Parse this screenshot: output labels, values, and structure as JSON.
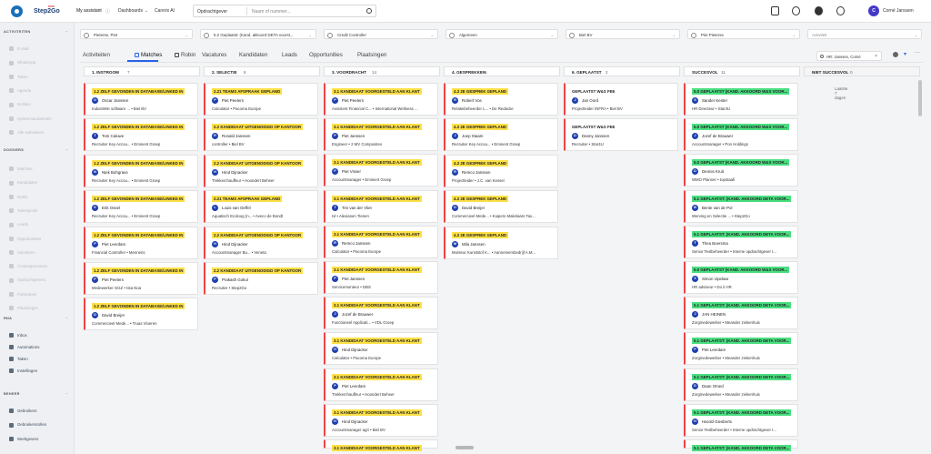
{
  "topbar": {
    "brand": "Step2Go",
    "brand_badge": "new",
    "nav": [
      "My assistant",
      "Dashboards",
      "Carerix AI"
    ],
    "search_type": "Opdrachtgever",
    "search_placeholder": "Naam of nummer...",
    "user_initial": "C",
    "user_name": "Corné Janssen"
  },
  "sidebar": {
    "sections": [
      {
        "title": "ACTIVITEITEN",
        "items": [
          "E-mail",
          "WhatsApp",
          "Taken",
          "Agenda",
          "Notities",
          "Systeemactiviteiten",
          "Alle activiteiten"
        ]
      },
      {
        "title": "DOSSIERS",
        "items": [
          "Matches",
          "Kandidaten",
          "Robin",
          "Talentpools",
          "Leads",
          "Opportunities",
          "Vacatures",
          "Contactpersonen",
          "Opdrachtgevers",
          "Publicaties",
          "Plaatsingen"
        ]
      },
      {
        "title": "RNA",
        "items": [
          "Inbox",
          "Automations",
          "Taken",
          "Instellingen"
        ]
      },
      {
        "title": "BEHEER",
        "items": [
          "Gebruikers",
          "Gebruikersrollen",
          "Werkgevers"
        ]
      }
    ]
  },
  "filters": [
    "Pieterse, Piet",
    "5.2 Geplaatst: (Kand. akkoord DETA voorst...",
    "Credit Controller",
    "Algemeen",
    "Biel BV",
    "Piet Pieterse",
    "Activiteit"
  ],
  "tabs": [
    "Activiteiten",
    "Matches",
    "Robin",
    "Vacatures",
    "Kandidaten",
    "Leads",
    "Opportunities",
    "Plaatsingen"
  ],
  "chip": "HR: Janssen, Corné",
  "columns": [
    {
      "title": "1. INSTROOM",
      "count": "7",
      "cards": [
        {
          "badge": "1.2 ZELF GEVONDEN IN DATABASE/LINKED IN",
          "initial": "O",
          "name": "Oscar Janssen",
          "meta": "Industriële software ... • Biel BV"
        },
        {
          "badge": "1.2 ZELF GEVONDEN IN DATABASE/LINKED IN",
          "initial": "T",
          "name": "Tom Caluwe",
          "meta": "Recruiter Key Accou... • Eminent Groep"
        },
        {
          "badge": "1.2 ZELF GEVONDEN IN DATABASE/LINKED IN",
          "initial": "N",
          "name": "Niek Bohgrave",
          "meta": "Recruiter Key Accou... • Eminent Groep"
        },
        {
          "badge": "1.2 ZELF GEVONDEN IN DATABASE/LINKED IN",
          "initial": "E",
          "name": "Erik Ossel",
          "meta": "Recruiter Key Accou... • Eminent Groep"
        },
        {
          "badge": "1.2 ZELF GEVONDEN IN DATABASE/LINKED IN",
          "initial": "P",
          "name": "Piet Leerdam",
          "meta": "Financial Controller • Mennens"
        },
        {
          "badge": "1.2 ZELF GEVONDEN IN DATABASE/LINKED IN",
          "initial": "P",
          "name": "Piet Peeters",
          "meta": "Medewerker GGZ • Ista Noa"
        },
        {
          "badge": "1.2 ZELF GEVONDEN IN DATABASE/LINKED IN",
          "initial": "D",
          "name": "David Breijer",
          "meta": "Commercieel Mede... • Truas Vloeren"
        }
      ]
    },
    {
      "title": "2. SELECTIE",
      "count": "6",
      "cards": [
        {
          "badge": "2.21 TEAMS AFSPRAAK GEPLAND",
          "initial": "P",
          "name": "Piet Peeters",
          "meta": "Calculator • Pacoma Europe"
        },
        {
          "badge": "2.2 KANDIDAAT UITGENODIGD OP KANTOOR",
          "initial": "R",
          "name": "Ronald Janssen",
          "meta": "controller • Biel BV"
        },
        {
          "badge": "2.2 KANDIDAAT UITGENODIGD OP KANTOOR",
          "initial": "H",
          "name": "Hind Dijnacker",
          "meta": "Trekkerchauffeur • Hoondert Beheer"
        },
        {
          "badge": "2.21 TEAMS AFSPRAAK GEPLAND",
          "initial": "L",
          "name": "Louis van Oeffel",
          "meta": "Aquatisch Ecoloog (n... • Aveco de Bondt"
        },
        {
          "badge": "2.2 KANDIDAAT UITGENODIGD OP KANTOOR",
          "initial": "H",
          "name": "Hind Dijnacker",
          "meta": "Accountmanager Bu... • Veneta"
        },
        {
          "badge": "2.2 KANDIDAAT UITGENODIGD OP KANTOOR",
          "initial": "P",
          "name": "Prakash Gokul",
          "meta": "Recruiter • Step2Go"
        }
      ]
    },
    {
      "title": "3. VOORDRACHT",
      "count": "14",
      "cards": [
        {
          "badge": "3.1 KANDIDAAT VOORGESTELD AAN KLANT",
          "initial": "P",
          "name": "Piet Peeters",
          "meta": "Assistent Financial C... • International Wellness ..."
        },
        {
          "badge": "3.1 KANDIDAAT VOORGESTELD AAN KLANT",
          "initial": "P",
          "name": "Piet Janssen",
          "meta": "Engineer • 2 MV Composites"
        },
        {
          "badge": "3.1 KANDIDAAT VOORGESTELD AAN KLANT",
          "initial": "P",
          "name": "Piet Visser",
          "meta": "Accountmanager • Eminent Groep"
        },
        {
          "badge": "3.1 KANDIDAAT VOORGESTELD AAN KLANT",
          "initial": "T",
          "name": "Tim van der Vliet",
          "meta": "Ivl • Alexianen Tienen"
        },
        {
          "badge": "3.1 KANDIDAAT VOORGESTELD AAN KLANT",
          "initial": "R",
          "name": "Remco Janssen",
          "meta": "Calculator • Pacoma Europe"
        },
        {
          "badge": "3.1 KANDIDAAT VOORGESTELD AAN KLANT",
          "initial": "P",
          "name": "Piet Janssen",
          "meta": "Servicemonteur • DBS"
        },
        {
          "badge": "3.1 KANDIDAAT VOORGESTELD AAN KLANT",
          "initial": "J",
          "name": "Jozef de Brauwer",
          "meta": "Functioneel Applicati... • VDL Groep"
        },
        {
          "badge": "3.1 KANDIDAAT VOORGESTELD AAN KLANT",
          "initial": "H",
          "name": "Hind Dijnacker",
          "meta": "Calculator • Pacoma Europe"
        },
        {
          "badge": "3.1 KANDIDAAT VOORGESTELD AAN KLANT",
          "initial": "P",
          "name": "Piet Leerdam",
          "meta": "Trekkerchauffeur • Hoondert Beheer"
        },
        {
          "badge": "3.1 KANDIDAAT VOORGESTELD AAN KLANT",
          "initial": "H",
          "name": "Hind Dijnacker",
          "meta": "Accountmanager agri • Biel BV"
        },
        {
          "badge": "3.1 KANDIDAAT VOORGESTELD AAN KLANT",
          "initial": "",
          "name": "",
          "meta": ""
        }
      ]
    },
    {
      "title": "4. GESPREKKEN",
      "count": "5",
      "cards": [
        {
          "badge": "4.3 2E GESPREK GEPLAND",
          "initial": "R",
          "name": "Robert Vos",
          "meta": "Relatiebeheerder L... • De Redactie"
        },
        {
          "badge": "4.3 2E GESPREK GEPLAND",
          "initial": "J",
          "name": "Joep Staam",
          "meta": "Recruiter Key Accou... • Eminent Groep"
        },
        {
          "badge": "4.3 2E GESPREK GEPLAND",
          "initial": "R",
          "name": "Remco Janssen",
          "meta": "Projectleider • J.C. van Kessel"
        },
        {
          "badge": "4.3 2E GESPREK GEPLAND",
          "initial": "D",
          "name": "David Breijer",
          "meta": "Commercieel Mede... • Kuipers Makelaars Tax..."
        },
        {
          "badge": "4.3 2E GESPREK GEPLAND",
          "initial": "M",
          "name": "Mila Janssen",
          "meta": "Monteur Kunststof K... • Aannemersbedrijf A.M..."
        }
      ]
    },
    {
      "title": "6. GEPLAATST",
      "count": "2",
      "cards": [
        {
          "badge": "GEPLAATST W&S FEE",
          "initial": "J",
          "name": "Jan Oord",
          "meta": "Projectleider INFRA • Biel BV"
        },
        {
          "badge": "GEPLAATST W&S FEE",
          "initial": "D",
          "name": "Danny Janssen",
          "meta": "Recruiter • Star4U"
        }
      ]
    },
    {
      "title": "SUCCESVOL",
      "count": "11",
      "cards": [
        {
          "badge": "5.0 GEPLAATST (KAND. AKKOORD W&S VOOR...",
          "initial": "S",
          "name": "Sander Kester",
          "meta": "HR Directeur • Star4U"
        },
        {
          "badge": "5.0 GEPLAATST (KAND. AKKOORD W&S VOOR...",
          "initial": "J",
          "name": "Jozef de Brauwer",
          "meta": "Accountmanager • Pon Holdings"
        },
        {
          "badge": "5.0 GEPLAATST (KAND. AKKOORD W&S VOOR...",
          "initial": "D",
          "name": "Dennis Kruit",
          "meta": "WMO Planner • topstaafi"
        },
        {
          "badge": "5.1 GEPLAATST: (KAND. AKKOORD DETA VOOR...",
          "initial": "B",
          "name": "Bente van de Pol",
          "meta": "Werving en Selectie ... • Step2Go"
        },
        {
          "badge": "5.1 GEPLAATST: (KAND. AKKOORD DETA VOOR...",
          "initial": "T",
          "name": "Thea Boersma",
          "meta": "Senior Testbeheerder • Interne opdrachtgever t..."
        },
        {
          "badge": "5.0 GEPLAATST (KAND. AKKOORD W&S VOOR...",
          "initial": "S",
          "name": "Simon IJpelaar",
          "meta": "HR adviseur • Do it HR"
        },
        {
          "badge": "5.1 GEPLAATST: (KAND. AKKOORD DETA VOOR...",
          "initial": "J",
          "name": "JAN HEINEN",
          "meta": "Zorgmedewerker • Meander ziekenhuis"
        },
        {
          "badge": "5.1 GEPLAATST: (KAND. AKKOORD DETA VOOR...",
          "initial": "P",
          "name": "Piet Leerdam",
          "meta": "Zorgmedewerker • Meander ziekenhuis"
        },
        {
          "badge": "5.1 GEPLAATST: (KAND. AKKOORD DETA VOOR...",
          "initial": "D",
          "name": "Daan Omed",
          "meta": "Zorgmedewerker • Meander ziekenhuis"
        },
        {
          "badge": "5.1 GEPLAATST: (KAND. AKKOORD DETA VOOR...",
          "initial": "H",
          "name": "Harold Giesberts",
          "meta": "Senior Testbeheerder • Interne opdrachtgever t..."
        },
        {
          "badge": "5.1 GEPLAATST: (KAND. AKKOORD DETA VOOR...",
          "initial": "",
          "name": "",
          "meta": ""
        }
      ]
    },
    {
      "title": "NIET SUCCESVOL",
      "count": "0",
      "empty_text": "Laatste 7 dagen",
      "cards": []
    }
  ],
  "colors": {
    "accent": "#2563eb",
    "card_edge": "#ef4444",
    "badge_yellow": "#fde047",
    "badge_green": "#4ade80",
    "avatar": "#1e40af"
  }
}
